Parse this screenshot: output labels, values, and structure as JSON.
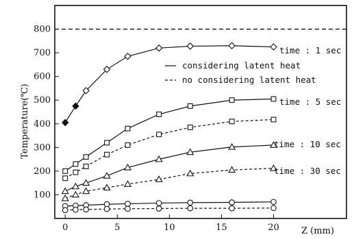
{
  "chart_data": {
    "type": "line",
    "title": "",
    "xlabel": "Z (mm)",
    "ylabel": "Temperature(℃)",
    "xlim": [
      -1,
      27
    ],
    "ylim": [
      0,
      900
    ],
    "x_ticks": [
      0,
      5,
      10,
      15,
      20
    ],
    "y_ticks": [
      100,
      200,
      300,
      400,
      500,
      600,
      700,
      800
    ],
    "grid": false,
    "reference_line": {
      "y": 800,
      "style": "dashed"
    },
    "legend": [
      {
        "label": "considering latent heat",
        "style": "solid"
      },
      {
        "label": "no considering latent heat",
        "style": "dashed"
      }
    ],
    "annotations": [
      {
        "text": "time : 1 sec",
        "series_group": "1 sec"
      },
      {
        "text": "time : 5 sec",
        "series_group": "5 sec"
      },
      {
        "text": "time : 10 sec",
        "series_group": "10 sec"
      },
      {
        "text": "time : 30 sec",
        "series_group": "30 sec"
      }
    ],
    "series": [
      {
        "time": "1 sec",
        "latent": true,
        "marker": "diamond",
        "style": "solid",
        "x": [
          0,
          1,
          2,
          4,
          6,
          9,
          12,
          16,
          20
        ],
        "y": [
          405,
          475,
          540,
          630,
          685,
          720,
          728,
          730,
          725
        ]
      },
      {
        "time": "5 sec",
        "latent": true,
        "marker": "square",
        "style": "solid",
        "x": [
          0,
          1,
          2,
          4,
          6,
          9,
          12,
          16,
          20
        ],
        "y": [
          200,
          230,
          260,
          320,
          380,
          440,
          475,
          500,
          505
        ]
      },
      {
        "time": "5 sec",
        "latent": false,
        "marker": "square",
        "style": "dashed",
        "x": [
          0,
          1,
          2,
          4,
          6,
          9,
          12,
          16,
          20
        ],
        "y": [
          170,
          195,
          220,
          270,
          310,
          355,
          385,
          410,
          418
        ]
      },
      {
        "time": "10 sec",
        "latent": true,
        "marker": "triangle",
        "style": "solid",
        "x": [
          0,
          1,
          2,
          4,
          6,
          9,
          12,
          16,
          20
        ],
        "y": [
          115,
          135,
          150,
          180,
          215,
          250,
          280,
          302,
          310
        ]
      },
      {
        "time": "10 sec",
        "latent": false,
        "marker": "triangle",
        "style": "dashed",
        "x": [
          0,
          1,
          2,
          4,
          6,
          9,
          12,
          16,
          20
        ],
        "y": [
          85,
          100,
          115,
          130,
          145,
          165,
          190,
          205,
          212
        ]
      },
      {
        "time": "30 sec",
        "latent": true,
        "marker": "circle",
        "style": "solid",
        "x": [
          0,
          1,
          2,
          4,
          6,
          9,
          12,
          16,
          20
        ],
        "y": [
          52,
          54,
          56,
          60,
          62,
          65,
          67,
          68,
          70
        ]
      },
      {
        "time": "30 sec",
        "latent": false,
        "marker": "circle",
        "style": "dashed",
        "x": [
          0,
          1,
          2,
          4,
          6,
          9,
          12,
          16,
          20
        ],
        "y": [
          35,
          37,
          38,
          40,
          41,
          42,
          43,
          43,
          44
        ]
      }
    ]
  }
}
